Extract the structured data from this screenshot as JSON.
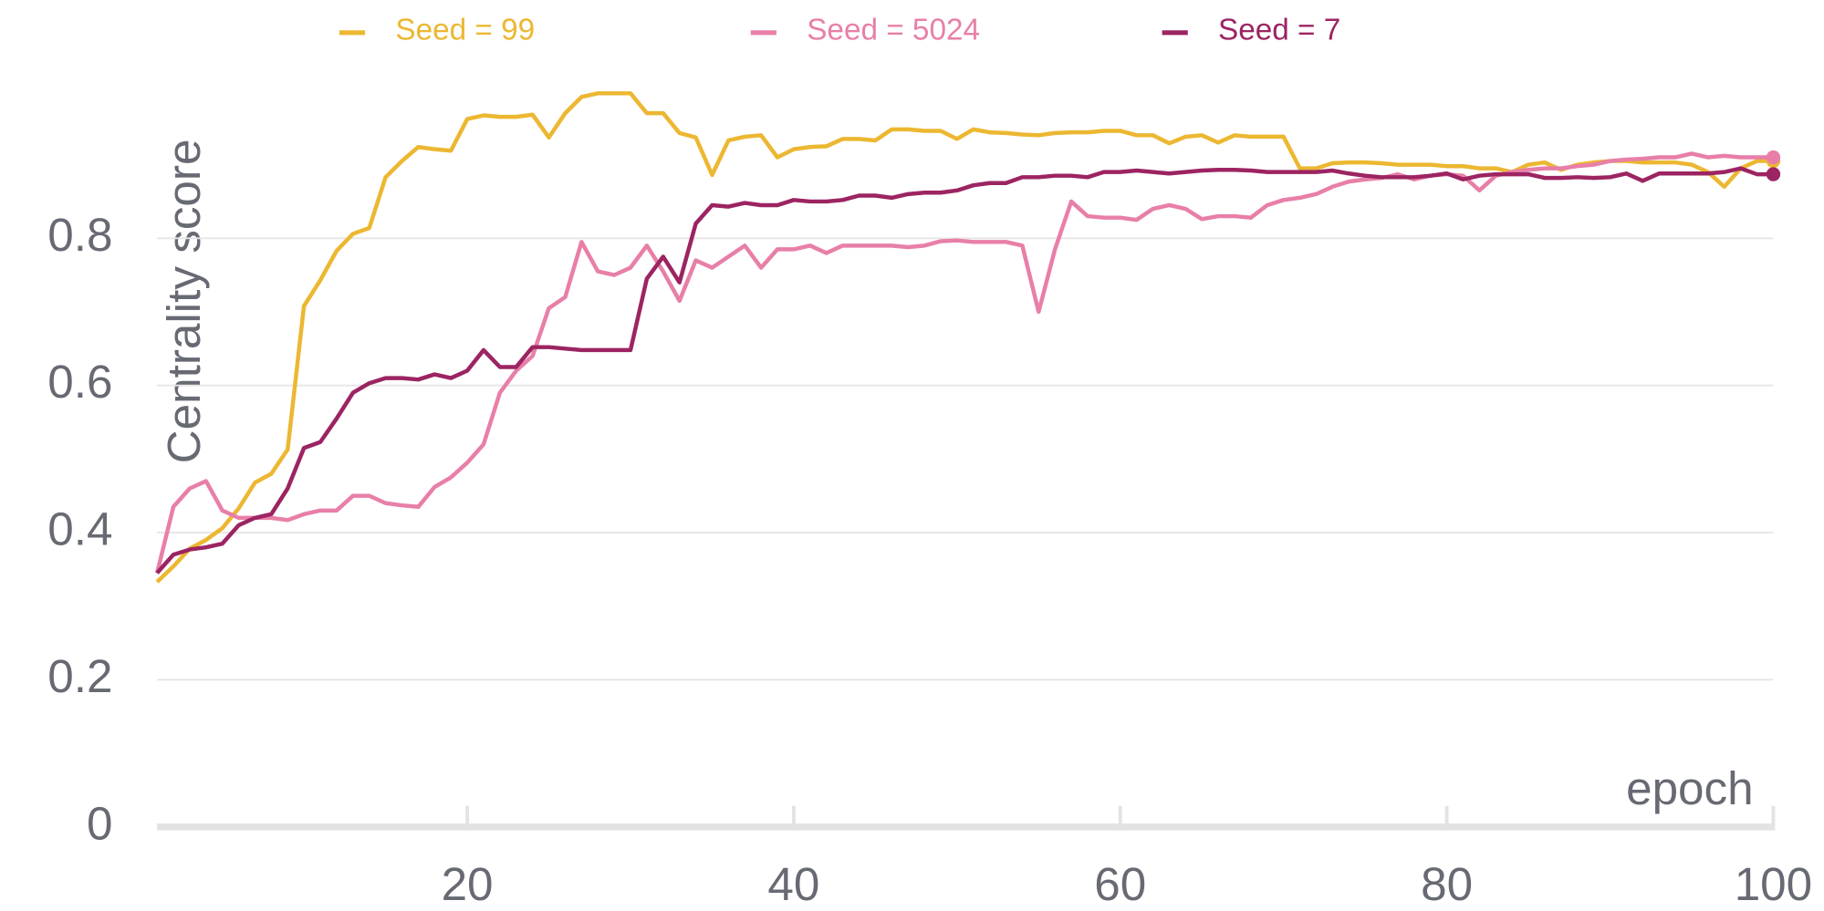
{
  "chart_data": {
    "type": "line",
    "xlabel": "epoch",
    "ylabel": "Centrality score",
    "x": [
      1,
      2,
      3,
      4,
      5,
      6,
      7,
      8,
      9,
      10,
      11,
      12,
      13,
      14,
      15,
      16,
      17,
      18,
      19,
      20,
      21,
      22,
      23,
      24,
      25,
      26,
      27,
      28,
      29,
      30,
      31,
      32,
      33,
      34,
      35,
      36,
      37,
      38,
      39,
      40,
      41,
      42,
      43,
      44,
      45,
      46,
      47,
      48,
      49,
      50,
      51,
      52,
      53,
      54,
      55,
      56,
      57,
      58,
      59,
      60,
      61,
      62,
      63,
      64,
      65,
      66,
      67,
      68,
      69,
      70,
      71,
      72,
      73,
      74,
      75,
      76,
      77,
      78,
      79,
      80,
      81,
      82,
      83,
      84,
      85,
      86,
      87,
      88,
      89,
      90,
      91,
      92,
      93,
      94,
      95,
      96,
      97,
      98,
      99,
      100
    ],
    "series": [
      {
        "name": "Seed = 99",
        "color": "#ecb731",
        "values": [
          0.333,
          0.354,
          0.378,
          0.39,
          0.406,
          0.433,
          0.468,
          0.48,
          0.513,
          0.708,
          0.743,
          0.783,
          0.806,
          0.814,
          0.883,
          0.905,
          0.924,
          0.921,
          0.919,
          0.962,
          0.967,
          0.965,
          0.965,
          0.968,
          0.937,
          0.97,
          0.992,
          0.997,
          0.997,
          0.997,
          0.97,
          0.97,
          0.943,
          0.937,
          0.886,
          0.933,
          0.938,
          0.94,
          0.91,
          0.921,
          0.924,
          0.925,
          0.935,
          0.935,
          0.933,
          0.948,
          0.948,
          0.946,
          0.946,
          0.935,
          0.948,
          0.944,
          0.943,
          0.941,
          0.94,
          0.943,
          0.944,
          0.944,
          0.946,
          0.946,
          0.94,
          0.94,
          0.929,
          0.938,
          0.94,
          0.93,
          0.94,
          0.938,
          0.938,
          0.938,
          0.895,
          0.895,
          0.902,
          0.903,
          0.903,
          0.902,
          0.9,
          0.9,
          0.9,
          0.898,
          0.898,
          0.895,
          0.895,
          0.89,
          0.9,
          0.903,
          0.893,
          0.9,
          0.903,
          0.905,
          0.905,
          0.903,
          0.903,
          0.903,
          0.9,
          0.89,
          0.87,
          0.895,
          0.905,
          0.905
        ]
      },
      {
        "name": "Seed = 5024",
        "color": "#e87fa8",
        "values": [
          0.345,
          0.435,
          0.46,
          0.47,
          0.43,
          0.42,
          0.42,
          0.42,
          0.417,
          0.425,
          0.43,
          0.43,
          0.45,
          0.45,
          0.44,
          0.437,
          0.435,
          0.462,
          0.475,
          0.495,
          0.52,
          0.59,
          0.62,
          0.64,
          0.705,
          0.72,
          0.795,
          0.755,
          0.75,
          0.76,
          0.79,
          0.755,
          0.715,
          0.77,
          0.76,
          0.775,
          0.79,
          0.76,
          0.785,
          0.785,
          0.79,
          0.78,
          0.79,
          0.79,
          0.79,
          0.79,
          0.788,
          0.79,
          0.796,
          0.797,
          0.795,
          0.795,
          0.795,
          0.79,
          0.7,
          0.785,
          0.85,
          0.83,
          0.828,
          0.828,
          0.825,
          0.84,
          0.845,
          0.84,
          0.826,
          0.83,
          0.83,
          0.828,
          0.845,
          0.852,
          0.855,
          0.86,
          0.87,
          0.877,
          0.88,
          0.882,
          0.887,
          0.88,
          0.885,
          0.887,
          0.885,
          0.865,
          0.885,
          0.89,
          0.893,
          0.895,
          0.895,
          0.898,
          0.9,
          0.905,
          0.907,
          0.908,
          0.91,
          0.91,
          0.915,
          0.91,
          0.912,
          0.91,
          0.91,
          0.91
        ]
      },
      {
        "name": "Seed = 7",
        "color": "#9c2462",
        "values": [
          0.345,
          0.37,
          0.377,
          0.38,
          0.385,
          0.41,
          0.42,
          0.425,
          0.46,
          0.515,
          0.523,
          0.555,
          0.59,
          0.603,
          0.61,
          0.61,
          0.608,
          0.615,
          0.61,
          0.62,
          0.648,
          0.625,
          0.625,
          0.652,
          0.652,
          0.65,
          0.648,
          0.648,
          0.648,
          0.648,
          0.745,
          0.775,
          0.74,
          0.82,
          0.845,
          0.843,
          0.848,
          0.845,
          0.845,
          0.852,
          0.85,
          0.85,
          0.852,
          0.858,
          0.858,
          0.855,
          0.86,
          0.862,
          0.862,
          0.865,
          0.872,
          0.875,
          0.875,
          0.883,
          0.883,
          0.885,
          0.885,
          0.883,
          0.89,
          0.89,
          0.892,
          0.89,
          0.888,
          0.89,
          0.892,
          0.893,
          0.893,
          0.892,
          0.89,
          0.89,
          0.89,
          0.89,
          0.892,
          0.888,
          0.885,
          0.883,
          0.883,
          0.883,
          0.885,
          0.888,
          0.88,
          0.885,
          0.887,
          0.887,
          0.887,
          0.882,
          0.882,
          0.883,
          0.882,
          0.883,
          0.888,
          0.878,
          0.888,
          0.888,
          0.888,
          0.888,
          0.89,
          0.895,
          0.887,
          0.887
        ]
      }
    ],
    "xlim": [
      1,
      100
    ],
    "xticks": [
      20,
      40,
      60,
      80,
      100
    ],
    "ylim": [
      0,
      1.05
    ],
    "yticks": [
      0,
      0.2,
      0.4,
      0.6,
      0.8
    ],
    "grid": true,
    "legend": "top"
  }
}
